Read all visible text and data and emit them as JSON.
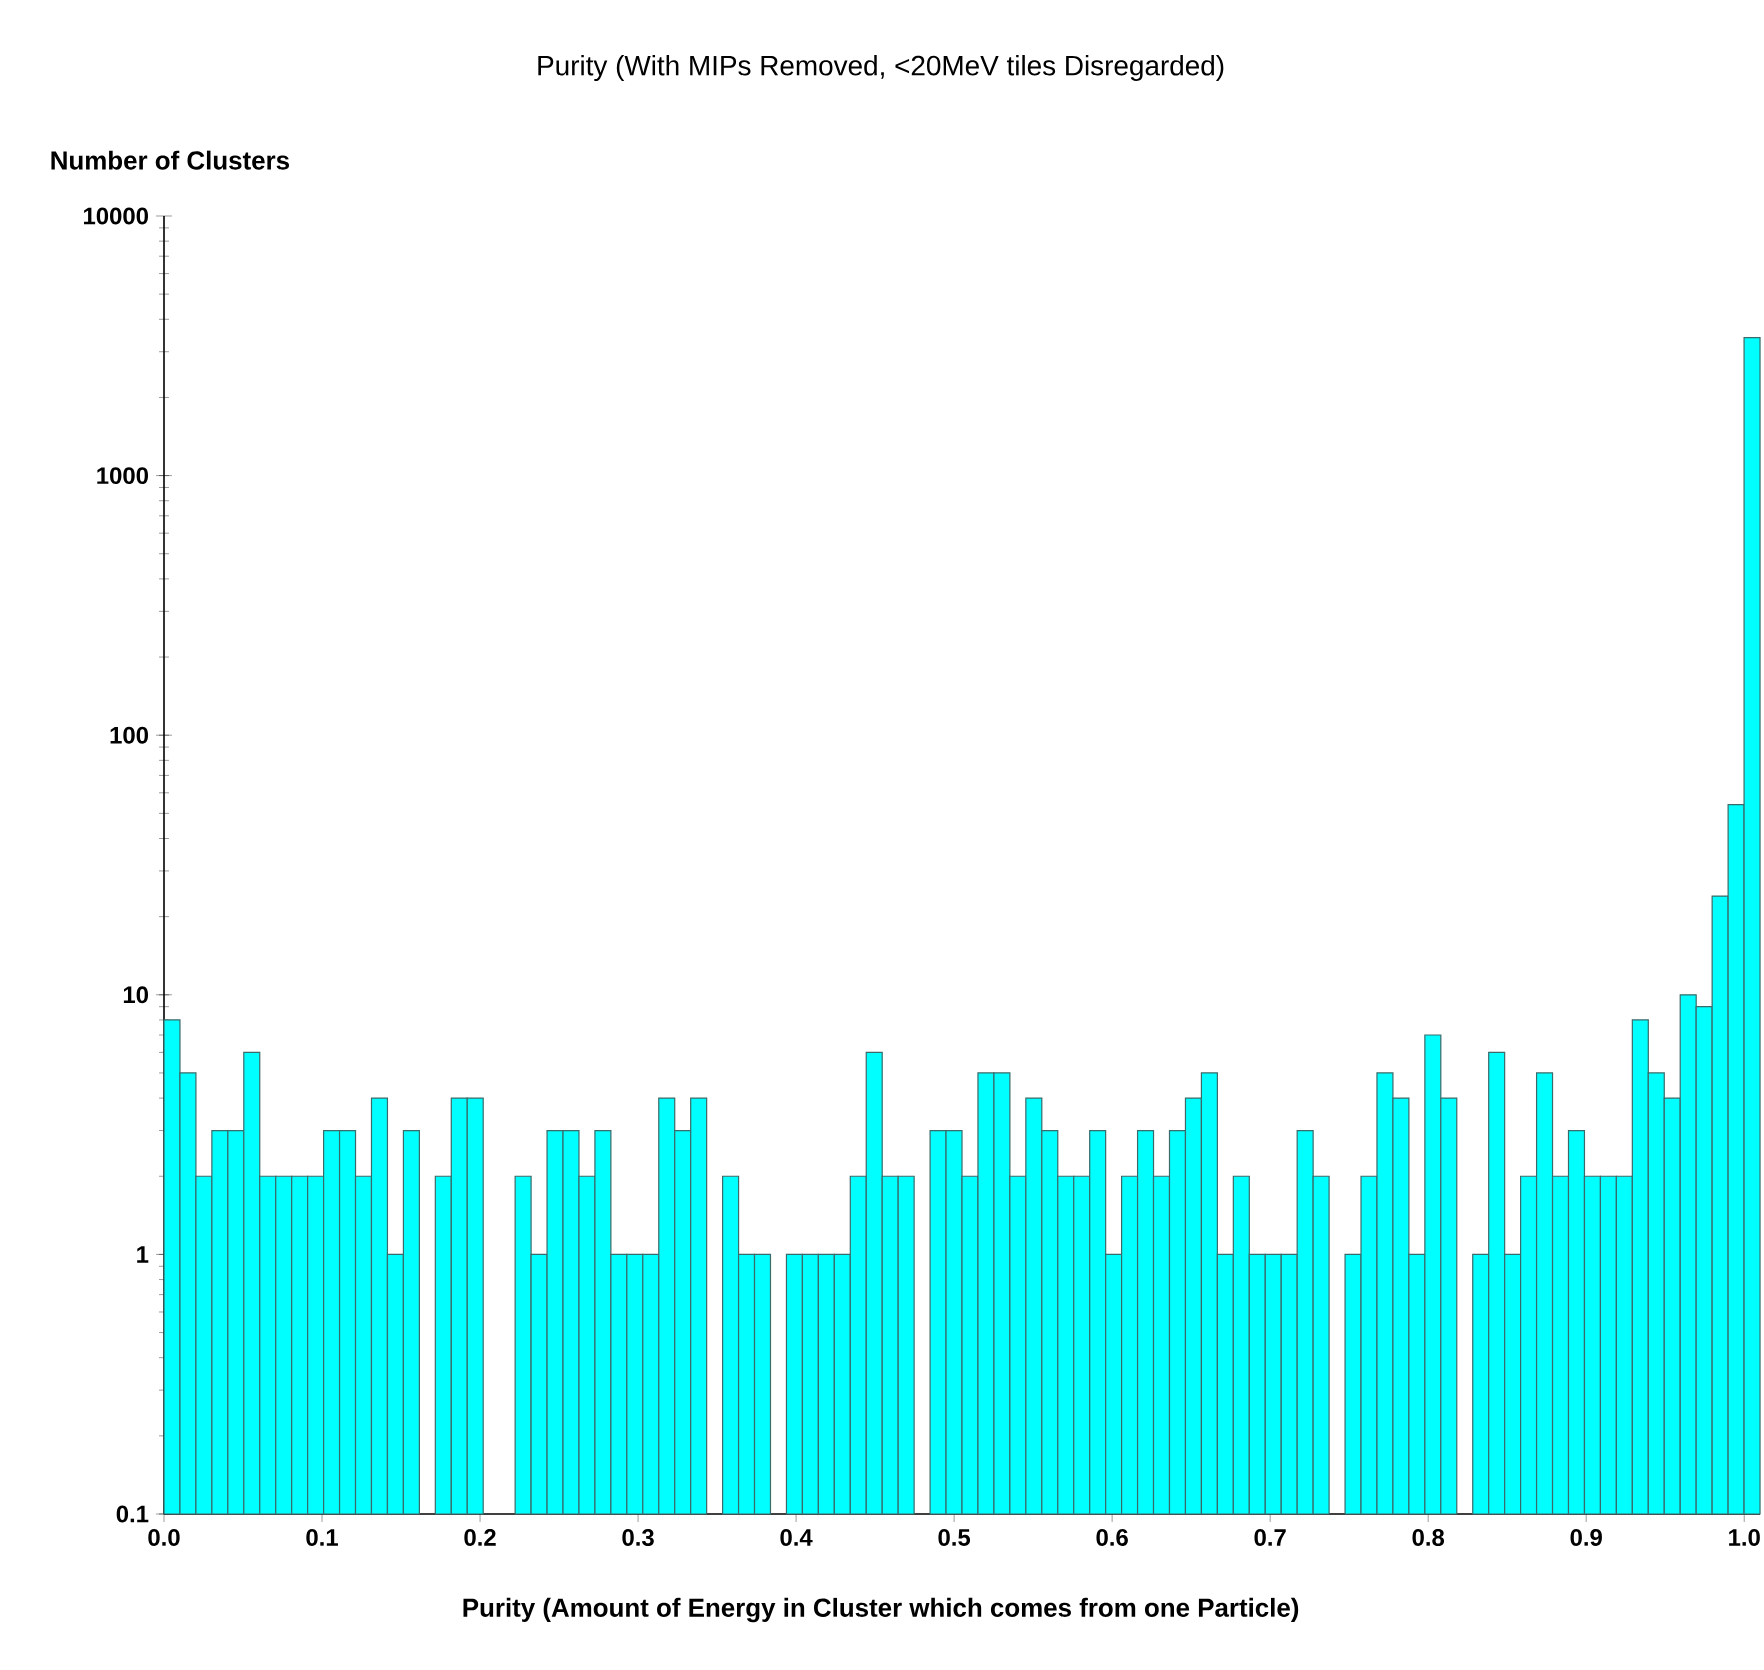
{
  "chart_data": {
    "type": "histogram",
    "title": "Purity (With MIPs Removed, <20MeV tiles Disregarded)",
    "xlabel": "Purity  (Amount of Energy in Cluster which comes from one Particle)",
    "ylabel": "Number of Clusters",
    "bins": [
      0,
      0.0101,
      0.0202,
      0.0303,
      0.0404,
      0.0505,
      0.0606,
      0.0707,
      0.0808,
      0.0909,
      0.101,
      0.1111,
      0.1212,
      0.1313,
      0.1414,
      0.1515,
      0.1616,
      0.1717,
      0.1818,
      0.1919,
      0.202,
      0.2121,
      0.2222,
      0.2323,
      0.2424,
      0.2525,
      0.2626,
      0.2727,
      0.2828,
      0.2929,
      0.303,
      0.3131,
      0.3232,
      0.3333,
      0.3434,
      0.3535,
      0.3636,
      0.3737,
      0.3838,
      0.3939,
      0.404,
      0.4141,
      0.4242,
      0.4343,
      0.4444,
      0.4545,
      0.4646,
      0.4747,
      0.4848,
      0.4949,
      0.505,
      0.5151,
      0.5252,
      0.5353,
      0.5454,
      0.5555,
      0.5656,
      0.5757,
      0.5858,
      0.5959,
      0.606,
      0.6161,
      0.6262,
      0.6363,
      0.6464,
      0.6565,
      0.6666,
      0.6767,
      0.6868,
      0.6969,
      0.707,
      0.7171,
      0.7272,
      0.7373,
      0.7474,
      0.7575,
      0.7676,
      0.7777,
      0.7878,
      0.7979,
      0.808,
      0.8181,
      0.8282,
      0.8383,
      0.8484,
      0.8585,
      0.8686,
      0.8787,
      0.8888,
      0.8989,
      0.909,
      0.9191,
      0.9292,
      0.9393,
      0.9494,
      0.9595,
      0.9696,
      0.9797,
      0.9898,
      0.9999,
      1.01
    ],
    "values": [
      8,
      5,
      2,
      3,
      3,
      6,
      2,
      2,
      2,
      2,
      3,
      3,
      2,
      4,
      1,
      3,
      null,
      2,
      4,
      4,
      null,
      null,
      2,
      1,
      3,
      3,
      2,
      3,
      1,
      1,
      1,
      4,
      3,
      4,
      null,
      2,
      1,
      1,
      null,
      1,
      1,
      1,
      1,
      2,
      6,
      2,
      2,
      null,
      3,
      3,
      2,
      5,
      5,
      2,
      4,
      3,
      2,
      2,
      3,
      1,
      2,
      3,
      2,
      3,
      4,
      5,
      1,
      2,
      1,
      1,
      1,
      3,
      2,
      null,
      1,
      2,
      5,
      4,
      1,
      7,
      4,
      null,
      1,
      6,
      1,
      2,
      5,
      2,
      3,
      2,
      2,
      2,
      8,
      5,
      4,
      10,
      9,
      24,
      54,
      3400
    ],
    "color": "#00ffff",
    "log": true,
    "xlim": [
      0,
      1.01
    ],
    "ylim": [
      0.1,
      10000
    ],
    "xticks": [
      {
        "value": 0,
        "label": "0.0"
      },
      {
        "value": 0.1,
        "label": "0.1"
      },
      {
        "value": 0.2,
        "label": "0.2"
      },
      {
        "value": 0.3,
        "label": "0.3"
      },
      {
        "value": 0.4,
        "label": "0.4"
      },
      {
        "value": 0.5,
        "label": "0.5"
      },
      {
        "value": 0.6,
        "label": "0.6"
      },
      {
        "value": 0.7,
        "label": "0.7"
      },
      {
        "value": 0.8,
        "label": "0.8"
      },
      {
        "value": 0.9,
        "label": "0.9"
      },
      {
        "value": 1.0,
        "label": "1.0"
      }
    ],
    "yticks": [
      0.1,
      1,
      10,
      100,
      1000,
      10000
    ]
  }
}
